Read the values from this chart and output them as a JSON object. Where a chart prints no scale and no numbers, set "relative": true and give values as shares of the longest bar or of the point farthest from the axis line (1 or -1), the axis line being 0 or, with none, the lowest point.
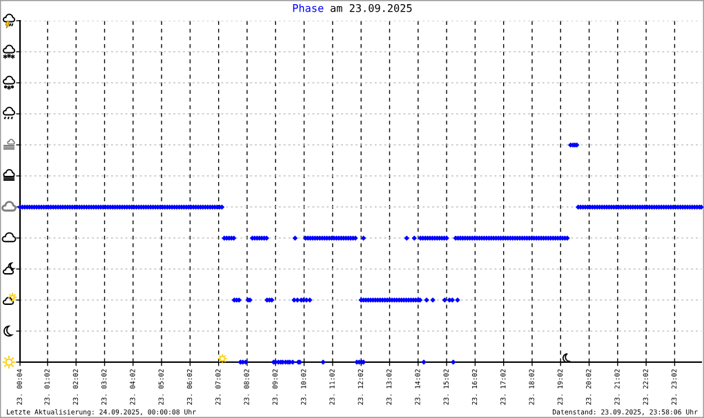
{
  "chart_data": {
    "type": "scatter",
    "title": "am 23.09.2025",
    "relative": true,
    "grid": true,
    "marker": "diamond",
    "xlim": [
      "2025-09-23T00:04",
      "2025-09-23T23:58"
    ],
    "xticks": [
      {
        "value": "2025-09-23T00:04",
        "label": "23. 00:04"
      },
      {
        "value": "2025-09-23T01:02",
        "label": "23. 01:02"
      },
      {
        "value": "2025-09-23T02:02",
        "label": "23. 02:02"
      },
      {
        "value": "2025-09-23T03:02",
        "label": "23. 03:02"
      },
      {
        "value": "2025-09-23T04:02",
        "label": "23. 04:02"
      },
      {
        "value": "2025-09-23T05:02",
        "label": "23. 05:02"
      },
      {
        "value": "2025-09-23T06:02",
        "label": "23. 06:02"
      },
      {
        "value": "2025-09-23T07:02",
        "label": "23. 07:02"
      },
      {
        "value": "2025-09-23T08:02",
        "label": "23. 08:02"
      },
      {
        "value": "2025-09-23T09:02",
        "label": "23. 09:02"
      },
      {
        "value": "2025-09-23T10:02",
        "label": "23. 10:02"
      },
      {
        "value": "2025-09-23T11:02",
        "label": "23. 11:02"
      },
      {
        "value": "2025-09-23T12:02",
        "label": "23. 12:02"
      },
      {
        "value": "2025-09-23T13:02",
        "label": "23. 13:02"
      },
      {
        "value": "2025-09-23T14:02",
        "label": "23. 14:02"
      },
      {
        "value": "2025-09-23T15:02",
        "label": "23. 15:02"
      },
      {
        "value": "2025-09-23T16:02",
        "label": "23. 16:02"
      },
      {
        "value": "2025-09-23T17:02",
        "label": "23. 17:02"
      },
      {
        "value": "2025-09-23T18:02",
        "label": "23. 18:02"
      },
      {
        "value": "2025-09-23T19:02",
        "label": "23. 19:02"
      },
      {
        "value": "2025-09-23T20:02",
        "label": "23. 20:02"
      },
      {
        "value": "2025-09-23T21:02",
        "label": "23. 21:02"
      },
      {
        "value": "2025-09-23T22:02",
        "label": "23. 22:02"
      },
      {
        "value": "2025-09-23T23:02",
        "label": "23. 23:02"
      }
    ],
    "annotations": [
      "Letzte Aktualisierung: 24.09.2025, 00:00:08 Uhr",
      "Datenstand: 23.09.2025, 23:58:06 Uhr"
    ],
    "series": [
      {
        "name": "Phase",
        "color": "#0000ff",
        "x": [
          "2025-09-23T00:04",
          "2025-09-23T00:09",
          "2025-09-23T00:14",
          "2025-09-23T00:19",
          "2025-09-23T00:24",
          "2025-09-23T00:29",
          "2025-09-23T00:34",
          "2025-09-23T00:39",
          "2025-09-23T00:44",
          "2025-09-23T00:49",
          "2025-09-23T00:54",
          "2025-09-23T00:59",
          "2025-09-23T01:04",
          "2025-09-23T01:09",
          "2025-09-23T01:14",
          "2025-09-23T01:19",
          "2025-09-23T01:24",
          "2025-09-23T01:29",
          "2025-09-23T01:34",
          "2025-09-23T01:39",
          "2025-09-23T01:44",
          "2025-09-23T01:49",
          "2025-09-23T01:54",
          "2025-09-23T01:59",
          "2025-09-23T02:04",
          "2025-09-23T02:09",
          "2025-09-23T02:14",
          "2025-09-23T02:19",
          "2025-09-23T02:24",
          "2025-09-23T02:29",
          "2025-09-23T02:34",
          "2025-09-23T02:39",
          "2025-09-23T02:44",
          "2025-09-23T02:49",
          "2025-09-23T02:54",
          "2025-09-23T02:59",
          "2025-09-23T03:04",
          "2025-09-23T03:09",
          "2025-09-23T03:14",
          "2025-09-23T03:19",
          "2025-09-23T03:24",
          "2025-09-23T03:29",
          "2025-09-23T03:34",
          "2025-09-23T03:39",
          "2025-09-23T03:44",
          "2025-09-23T03:49",
          "2025-09-23T03:54",
          "2025-09-23T03:59",
          "2025-09-23T04:04",
          "2025-09-23T04:09",
          "2025-09-23T04:14",
          "2025-09-23T04:19",
          "2025-09-23T04:24",
          "2025-09-23T04:29",
          "2025-09-23T04:34",
          "2025-09-23T04:39",
          "2025-09-23T04:44",
          "2025-09-23T04:49",
          "2025-09-23T04:54",
          "2025-09-23T04:59",
          "2025-09-23T05:04",
          "2025-09-23T05:09",
          "2025-09-23T05:14",
          "2025-09-23T05:19",
          "2025-09-23T05:24",
          "2025-09-23T05:29",
          "2025-09-23T05:34",
          "2025-09-23T05:39",
          "2025-09-23T05:44",
          "2025-09-23T05:49",
          "2025-09-23T05:54",
          "2025-09-23T05:59",
          "2025-09-23T06:04",
          "2025-09-23T06:09",
          "2025-09-23T06:14",
          "2025-09-23T06:19",
          "2025-09-23T06:24",
          "2025-09-23T06:29",
          "2025-09-23T06:34",
          "2025-09-23T06:39",
          "2025-09-23T06:44",
          "2025-09-23T06:49",
          "2025-09-23T06:54",
          "2025-09-23T06:59",
          "2025-09-23T07:04",
          "2025-09-23T07:09",
          "2025-09-23T19:39",
          "2025-09-23T19:44",
          "2025-09-23T19:49",
          "2025-09-23T19:54",
          "2025-09-23T19:59",
          "2025-09-23T20:04",
          "2025-09-23T20:09",
          "2025-09-23T20:14",
          "2025-09-23T20:19",
          "2025-09-23T20:24",
          "2025-09-23T20:29",
          "2025-09-23T20:34",
          "2025-09-23T20:39",
          "2025-09-23T20:44",
          "2025-09-23T20:49",
          "2025-09-23T20:54",
          "2025-09-23T20:59",
          "2025-09-23T21:04",
          "2025-09-23T21:09",
          "2025-09-23T21:14",
          "2025-09-23T21:19",
          "2025-09-23T21:24",
          "2025-09-23T21:29",
          "2025-09-23T21:34",
          "2025-09-23T21:39",
          "2025-09-23T21:44",
          "2025-09-23T21:49",
          "2025-09-23T21:54",
          "2025-09-23T21:59",
          "2025-09-23T22:04",
          "2025-09-23T22:09",
          "2025-09-23T22:14",
          "2025-09-23T22:19",
          "2025-09-23T22:24",
          "2025-09-23T22:29",
          "2025-09-23T22:34",
          "2025-09-23T22:39",
          "2025-09-23T22:44",
          "2025-09-23T22:49",
          "2025-09-23T22:54",
          "2025-09-23T22:59",
          "2025-09-23T23:04",
          "2025-09-23T23:09",
          "2025-09-23T23:14",
          "2025-09-23T23:19",
          "2025-09-23T23:24",
          "2025-09-23T23:29",
          "2025-09-23T23:34",
          "2025-09-23T23:39",
          "2025-09-23T23:44",
          "2025-09-23T23:49",
          "2025-09-23T23:54",
          "2025-09-23T23:58",
          "2025-09-23T07:14",
          "2025-09-23T07:19",
          "2025-09-23T07:24",
          "2025-09-23T07:29",
          "2025-09-23T07:34",
          "2025-09-23T08:13",
          "2025-09-23T08:18",
          "2025-09-23T08:23",
          "2025-09-23T08:28",
          "2025-09-23T08:33",
          "2025-09-23T08:38",
          "2025-09-23T08:43",
          "2025-09-23T09:43",
          "2025-09-23T10:05",
          "2025-09-23T10:10",
          "2025-09-23T10:15",
          "2025-09-23T10:20",
          "2025-09-23T10:25",
          "2025-09-23T10:30",
          "2025-09-23T10:35",
          "2025-09-23T10:40",
          "2025-09-23T10:45",
          "2025-09-23T10:50",
          "2025-09-23T10:55",
          "2025-09-23T11:00",
          "2025-09-23T11:05",
          "2025-09-23T11:10",
          "2025-09-23T11:15",
          "2025-09-23T11:20",
          "2025-09-23T11:25",
          "2025-09-23T11:30",
          "2025-09-23T11:35",
          "2025-09-23T11:40",
          "2025-09-23T11:45",
          "2025-09-23T11:50",
          "2025-09-23T12:07",
          "2025-09-23T13:38",
          "2025-09-23T13:54",
          "2025-09-23T14:07",
          "2025-09-23T14:12",
          "2025-09-23T14:17",
          "2025-09-23T14:22",
          "2025-09-23T14:27",
          "2025-09-23T14:32",
          "2025-09-23T14:37",
          "2025-09-23T14:42",
          "2025-09-23T14:47",
          "2025-09-23T14:52",
          "2025-09-23T14:57",
          "2025-09-23T15:02",
          "2025-09-23T15:21",
          "2025-09-23T15:26",
          "2025-09-23T15:31",
          "2025-09-23T15:36",
          "2025-09-23T15:41",
          "2025-09-23T15:46",
          "2025-09-23T15:51",
          "2025-09-23T15:56",
          "2025-09-23T16:01",
          "2025-09-23T16:06",
          "2025-09-23T16:11",
          "2025-09-23T16:16",
          "2025-09-23T16:21",
          "2025-09-23T16:26",
          "2025-09-23T16:31",
          "2025-09-23T16:36",
          "2025-09-23T16:41",
          "2025-09-23T16:46",
          "2025-09-23T16:51",
          "2025-09-23T16:56",
          "2025-09-23T17:01",
          "2025-09-23T17:06",
          "2025-09-23T17:11",
          "2025-09-23T17:16",
          "2025-09-23T17:21",
          "2025-09-23T17:26",
          "2025-09-23T17:31",
          "2025-09-23T17:36",
          "2025-09-23T17:41",
          "2025-09-23T17:46",
          "2025-09-23T17:51",
          "2025-09-23T17:56",
          "2025-09-23T18:01",
          "2025-09-23T18:06",
          "2025-09-23T18:11",
          "2025-09-23T18:16",
          "2025-09-23T18:21",
          "2025-09-23T18:26",
          "2025-09-23T18:31",
          "2025-09-23T18:36",
          "2025-09-23T18:41",
          "2025-09-23T18:46",
          "2025-09-23T18:51",
          "2025-09-23T18:56",
          "2025-09-23T19:01",
          "2025-09-23T19:06",
          "2025-09-23T19:11",
          "2025-09-23T19:16",
          "2025-09-23T07:35",
          "2025-09-23T07:40",
          "2025-09-23T07:45",
          "2025-09-23T08:04",
          "2025-09-23T08:08",
          "2025-09-23T08:44",
          "2025-09-23T08:49",
          "2025-09-23T08:54",
          "2025-09-23T09:41",
          "2025-09-23T09:48",
          "2025-09-23T09:56",
          "2025-09-23T10:01",
          "2025-09-23T10:07",
          "2025-09-23T10:14",
          "2025-09-23T12:02",
          "2025-09-23T12:07",
          "2025-09-23T12:12",
          "2025-09-23T12:17",
          "2025-09-23T12:22",
          "2025-09-23T12:27",
          "2025-09-23T12:32",
          "2025-09-23T12:37",
          "2025-09-23T12:42",
          "2025-09-23T12:47",
          "2025-09-23T12:52",
          "2025-09-23T12:57",
          "2025-09-23T13:02",
          "2025-09-23T13:07",
          "2025-09-23T13:12",
          "2025-09-23T13:17",
          "2025-09-23T13:22",
          "2025-09-23T13:27",
          "2025-09-23T13:32",
          "2025-09-23T13:37",
          "2025-09-23T13:42",
          "2025-09-23T13:47",
          "2025-09-23T13:52",
          "2025-09-23T13:57",
          "2025-09-23T14:02",
          "2025-09-23T14:06",
          "2025-09-23T14:20",
          "2025-09-23T14:33",
          "2025-09-23T14:58",
          "2025-09-23T15:08",
          "2025-09-23T15:14",
          "2025-09-23T15:25",
          "2025-09-23T07:48",
          "2025-09-23T07:53",
          "2025-09-23T07:59",
          "2025-09-23T08:58",
          "2025-09-23T09:02",
          "2025-09-23T09:08",
          "2025-09-23T09:13",
          "2025-09-23T09:17",
          "2025-09-23T09:23",
          "2025-09-23T09:28",
          "2025-09-23T09:32",
          "2025-09-23T09:38",
          "2025-09-23T09:50",
          "2025-09-23T09:53",
          "2025-09-23T10:42",
          "2025-09-23T11:53",
          "2025-09-23T11:58",
          "2025-09-23T12:03",
          "2025-09-23T12:07",
          "2025-09-23T14:14",
          "2025-09-23T15:16",
          "2025-09-23T19:23",
          "2025-09-23T19:28",
          "2025-09-23T19:32",
          "2025-09-23T19:36"
        ],
        "values": [
          0.714,
          0.714,
          0.714,
          0.714,
          0.714,
          0.714,
          0.714,
          0.714,
          0.714,
          0.714,
          0.714,
          0.714,
          0.714,
          0.714,
          0.714,
          0.714,
          0.714,
          0.714,
          0.714,
          0.714,
          0.714,
          0.714,
          0.714,
          0.714,
          0.714,
          0.714,
          0.714,
          0.714,
          0.714,
          0.714,
          0.714,
          0.714,
          0.714,
          0.714,
          0.714,
          0.714,
          0.714,
          0.714,
          0.714,
          0.714,
          0.714,
          0.714,
          0.714,
          0.714,
          0.714,
          0.714,
          0.714,
          0.714,
          0.714,
          0.714,
          0.714,
          0.714,
          0.714,
          0.714,
          0.714,
          0.714,
          0.714,
          0.714,
          0.714,
          0.714,
          0.714,
          0.714,
          0.714,
          0.714,
          0.714,
          0.714,
          0.714,
          0.714,
          0.714,
          0.714,
          0.714,
          0.714,
          0.714,
          0.714,
          0.714,
          0.714,
          0.714,
          0.714,
          0.714,
          0.714,
          0.714,
          0.714,
          0.714,
          0.714,
          0.714,
          0.714,
          0.714,
          0.714,
          0.714,
          0.714,
          0.714,
          0.714,
          0.714,
          0.714,
          0.714,
          0.714,
          0.714,
          0.714,
          0.714,
          0.714,
          0.714,
          0.714,
          0.714,
          0.714,
          0.714,
          0.714,
          0.714,
          0.714,
          0.714,
          0.714,
          0.714,
          0.714,
          0.714,
          0.714,
          0.714,
          0.714,
          0.714,
          0.714,
          0.714,
          0.714,
          0.714,
          0.714,
          0.714,
          0.714,
          0.714,
          0.714,
          0.714,
          0.714,
          0.714,
          0.714,
          0.714,
          0.714,
          0.714,
          0.714,
          0.714,
          0.714,
          0.714,
          0.714,
          0.714,
          0.571,
          0.571,
          0.571,
          0.571,
          0.571,
          0.571,
          0.571,
          0.571,
          0.571,
          0.571,
          0.571,
          0.571,
          0.571,
          0.571,
          0.571,
          0.571,
          0.571,
          0.571,
          0.571,
          0.571,
          0.571,
          0.571,
          0.571,
          0.571,
          0.571,
          0.571,
          0.571,
          0.571,
          0.571,
          0.571,
          0.571,
          0.571,
          0.571,
          0.571,
          0.571,
          0.571,
          0.571,
          0.571,
          0.571,
          0.571,
          0.571,
          0.571,
          0.571,
          0.571,
          0.571,
          0.571,
          0.571,
          0.571,
          0.571,
          0.571,
          0.571,
          0.571,
          0.571,
          0.571,
          0.571,
          0.571,
          0.571,
          0.571,
          0.571,
          0.571,
          0.571,
          0.571,
          0.571,
          0.571,
          0.571,
          0.571,
          0.571,
          0.571,
          0.571,
          0.571,
          0.571,
          0.571,
          0.571,
          0.571,
          0.571,
          0.571,
          0.571,
          0.571,
          0.571,
          0.571,
          0.571,
          0.571,
          0.571,
          0.571,
          0.571,
          0.571,
          0.571,
          0.571,
          0.571,
          0.571,
          0.571,
          0.571,
          0.571,
          0.571,
          0.571,
          0.571,
          0.571,
          0.571,
          0.286,
          0.286,
          0.286,
          0.286,
          0.286,
          0.286,
          0.286,
          0.286,
          0.286,
          0.286,
          0.286,
          0.286,
          0.286,
          0.286,
          0.286,
          0.286,
          0.286,
          0.286,
          0.286,
          0.286,
          0.286,
          0.286,
          0.286,
          0.286,
          0.286,
          0.286,
          0.286,
          0.286,
          0.286,
          0.286,
          0.286,
          0.286,
          0.286,
          0.286,
          0.286,
          0.286,
          0.286,
          0.286,
          0.286,
          0.286,
          0.286,
          0.286,
          0.286,
          0.286,
          0.286,
          0.286,
          0,
          0,
          0,
          0,
          0,
          0,
          0,
          0,
          0,
          0,
          0,
          0,
          0,
          0,
          0,
          0,
          0,
          0,
          0,
          0,
          0,
          1,
          1,
          1,
          1
        ]
      },
      {
        "marker": "cross",
        "x": [
          "2025-09-23T07:10",
          "2025-09-23T19:16"
        ],
        "values": [
          0.016,
          0.019
        ],
        "colors": [
          "#ffcc00",
          "#000000"
        ]
      }
    ]
  }
}
